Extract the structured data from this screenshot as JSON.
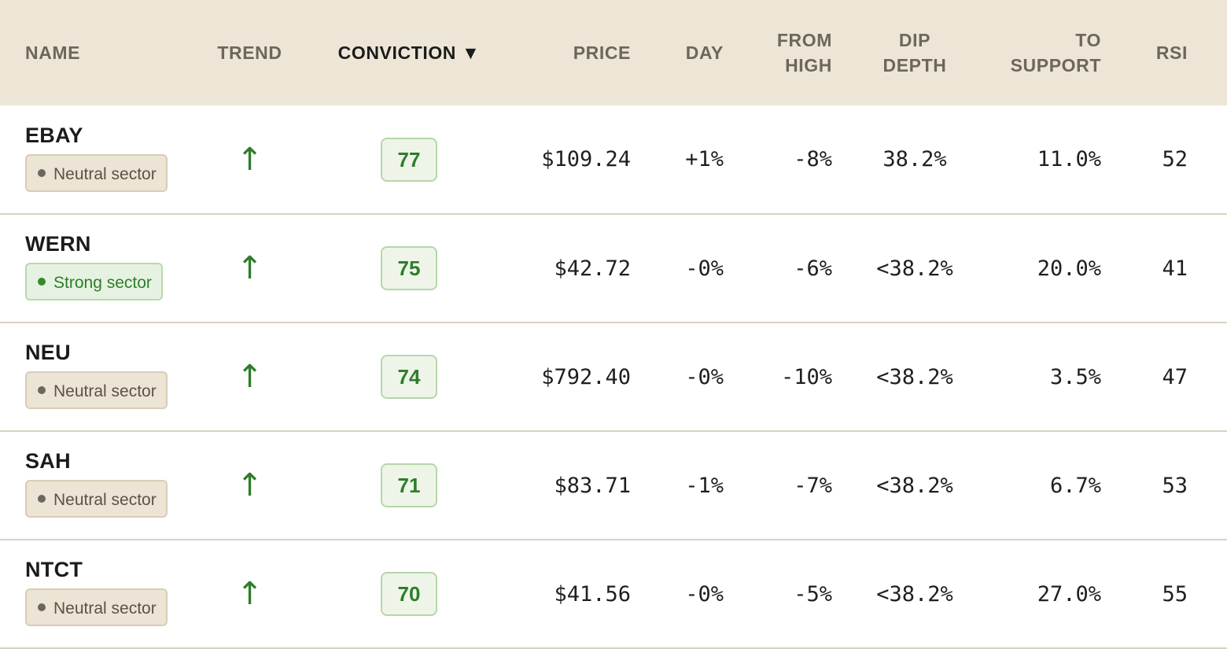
{
  "headers": {
    "name": "NAME",
    "trend": "TREND",
    "conviction": "CONVICTION ▼",
    "price": "PRICE",
    "day": "DAY",
    "from_high": [
      "FROM",
      "HIGH"
    ],
    "dip_depth": [
      "DIP",
      "DEPTH"
    ],
    "to_support": [
      "TO",
      "SUPPORT"
    ],
    "rsi": "RSI"
  },
  "sort": {
    "column": "conviction",
    "direction": "descending"
  },
  "colors": {
    "header_bg": "#ede6d6",
    "positive_green": "#2e7d2a",
    "neutral_badge_bg": "#ece4d4",
    "strong_badge_bg": "#e6f2e1"
  },
  "rows": [
    {
      "symbol": "EBAY",
      "sector": "Neutral sector",
      "sector_kind": "neutral",
      "trend": "↑",
      "trend_icon": "arrow-up-icon",
      "conviction": "77",
      "price": "$109.24",
      "day": "+1%",
      "from_high": "-8%",
      "dip_depth": "38.2%",
      "to_support": "11.0%",
      "rsi": "52"
    },
    {
      "symbol": "WERN",
      "sector": "Strong sector",
      "sector_kind": "strong",
      "trend": "↑",
      "trend_icon": "arrow-up-icon",
      "conviction": "75",
      "price": "$42.72",
      "day": "-0%",
      "from_high": "-6%",
      "dip_depth": "<38.2%",
      "to_support": "20.0%",
      "rsi": "41"
    },
    {
      "symbol": "NEU",
      "sector": "Neutral sector",
      "sector_kind": "neutral",
      "trend": "↑",
      "trend_icon": "arrow-up-icon",
      "conviction": "74",
      "price": "$792.40",
      "day": "-0%",
      "from_high": "-10%",
      "dip_depth": "<38.2%",
      "to_support": "3.5%",
      "rsi": "47"
    },
    {
      "symbol": "SAH",
      "sector": "Neutral sector",
      "sector_kind": "neutral",
      "trend": "↑",
      "trend_icon": "arrow-up-icon",
      "conviction": "71",
      "price": "$83.71",
      "day": "-1%",
      "from_high": "-7%",
      "dip_depth": "<38.2%",
      "to_support": "6.7%",
      "rsi": "53"
    },
    {
      "symbol": "NTCT",
      "sector": "Neutral sector",
      "sector_kind": "neutral",
      "trend": "↑",
      "trend_icon": "arrow-up-icon",
      "conviction": "70",
      "price": "$41.56",
      "day": "-0%",
      "from_high": "-5%",
      "dip_depth": "<38.2%",
      "to_support": "27.0%",
      "rsi": "55"
    }
  ]
}
